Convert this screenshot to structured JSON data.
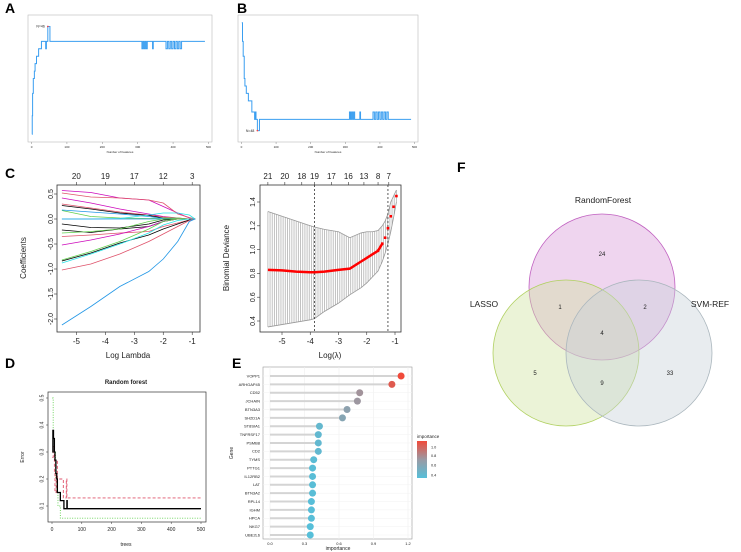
{
  "panel_labels": [
    "A",
    "B",
    "C",
    "D",
    "E",
    "F"
  ],
  "chart_data": [
    {
      "id": "A",
      "type": "line",
      "xlabel": "Number of Features",
      "xlim": [
        0,
        500
      ],
      "ylim": [
        0.7,
        0.86
      ],
      "xticks": [
        "0",
        "100",
        "200",
        "300",
        "400",
        "500"
      ],
      "color": "#3a9ef0",
      "annotation": "N=46",
      "annotation_color": "#ff4040",
      "points": [
        [
          1,
          0.705
        ],
        [
          2,
          0.73
        ],
        [
          3,
          0.76
        ],
        [
          5,
          0.78
        ],
        [
          8,
          0.79
        ],
        [
          10,
          0.8
        ],
        [
          14,
          0.81
        ],
        [
          20,
          0.82
        ],
        [
          25,
          0.82
        ],
        [
          28,
          0.83
        ],
        [
          38,
          0.83
        ],
        [
          40,
          0.82
        ],
        [
          42,
          0.83
        ],
        [
          46,
          0.85
        ],
        [
          50,
          0.85
        ],
        [
          52,
          0.83
        ],
        [
          310,
          0.83
        ],
        [
          312,
          0.82
        ],
        [
          315,
          0.83
        ],
        [
          318,
          0.82
        ],
        [
          321,
          0.83
        ],
        [
          324,
          0.82
        ],
        [
          327,
          0.83
        ],
        [
          340,
          0.83
        ],
        [
          342,
          0.82
        ],
        [
          344,
          0.83
        ],
        [
          378,
          0.83
        ],
        [
          380,
          0.82
        ],
        [
          384,
          0.83
        ],
        [
          388,
          0.82
        ],
        [
          392,
          0.83
        ],
        [
          396,
          0.82
        ],
        [
          400,
          0.83
        ],
        [
          404,
          0.82
        ],
        [
          408,
          0.83
        ],
        [
          412,
          0.82
        ],
        [
          416,
          0.83
        ],
        [
          420,
          0.82
        ],
        [
          424,
          0.83
        ],
        [
          490,
          0.83
        ]
      ]
    },
    {
      "id": "B",
      "type": "line",
      "xlabel": "Number of Features",
      "xlim": [
        0,
        500
      ],
      "ylim": [
        0.14,
        0.3
      ],
      "xticks": [
        "0",
        "100",
        "200",
        "300",
        "400",
        "500"
      ],
      "color": "#3a9ef0",
      "annotation": "N=48",
      "annotation_color": "#ff4040",
      "points": [
        [
          1,
          0.295
        ],
        [
          3,
          0.27
        ],
        [
          5,
          0.25
        ],
        [
          8,
          0.22
        ],
        [
          10,
          0.21
        ],
        [
          14,
          0.2
        ],
        [
          20,
          0.19
        ],
        [
          25,
          0.19
        ],
        [
          30,
          0.175
        ],
        [
          38,
          0.165
        ],
        [
          40,
          0.175
        ],
        [
          42,
          0.165
        ],
        [
          46,
          0.15
        ],
        [
          50,
          0.15
        ],
        [
          52,
          0.165
        ],
        [
          310,
          0.165
        ],
        [
          312,
          0.175
        ],
        [
          315,
          0.165
        ],
        [
          318,
          0.175
        ],
        [
          321,
          0.165
        ],
        [
          324,
          0.175
        ],
        [
          327,
          0.165
        ],
        [
          340,
          0.165
        ],
        [
          342,
          0.175
        ],
        [
          344,
          0.165
        ],
        [
          378,
          0.165
        ],
        [
          380,
          0.175
        ],
        [
          384,
          0.165
        ],
        [
          388,
          0.175
        ],
        [
          392,
          0.165
        ],
        [
          396,
          0.175
        ],
        [
          400,
          0.165
        ],
        [
          404,
          0.175
        ],
        [
          408,
          0.165
        ],
        [
          412,
          0.175
        ],
        [
          416,
          0.165
        ],
        [
          420,
          0.175
        ],
        [
          424,
          0.165
        ],
        [
          490,
          0.165
        ]
      ]
    },
    {
      "id": "C-left",
      "type": "line",
      "xlabel": "Log Lambda",
      "ylabel": "Coefficients",
      "xlim": [
        -5.6,
        -0.8
      ],
      "ylim": [
        -2.2,
        0.6
      ],
      "xticks": [
        "-5",
        "-4",
        "-3",
        "-2",
        "-1"
      ],
      "yticks": [
        "-2.0",
        "-1.5",
        "-1.0",
        "-0.5",
        "0.0",
        "0.5"
      ],
      "top_ticks": [
        "20",
        "19",
        "17",
        "12",
        "3"
      ],
      "x": [
        -5.5,
        -4.5,
        -3.5,
        -2.5,
        -2.0,
        -1.5,
        -1.1,
        -0.9
      ],
      "series": [
        {
          "color": "#CD0BBC",
          "values": [
            0.57,
            0.53,
            0.42,
            0.38,
            0.25,
            0.12,
            0.02,
            0
          ]
        },
        {
          "color": "#DF536B",
          "values": [
            0.52,
            0.44,
            0.42,
            0.38,
            0.32,
            0.1,
            0.03,
            0
          ]
        },
        {
          "color": "#CD0BBC",
          "values": [
            0.42,
            0.32,
            0.2,
            0.1,
            0.05,
            0.02,
            0,
            0
          ]
        },
        {
          "color": "#DF536B",
          "values": [
            0.3,
            0.22,
            0.14,
            0.08,
            0.04,
            0.02,
            0,
            0
          ]
        },
        {
          "color": "#000000",
          "values": [
            0.27,
            0.2,
            0.12,
            0.07,
            0.02,
            0,
            0,
            0
          ]
        },
        {
          "color": "#61D04F",
          "values": [
            0.17,
            0.05,
            0.02,
            0.01,
            0.02,
            0.02,
            0,
            0
          ]
        },
        {
          "color": "#2297E6",
          "values": [
            0.18,
            0.14,
            0.1,
            0.05,
            0.01,
            0,
            0,
            0
          ]
        },
        {
          "color": "#28E2E5",
          "values": [
            0.0,
            0.0,
            0.01,
            0.08,
            0.12,
            0.12,
            0.08,
            0
          ]
        },
        {
          "color": "#2297E6",
          "values": [
            0.0,
            0.0,
            0.0,
            0.0,
            0.0,
            0.0,
            0.0,
            0
          ]
        },
        {
          "color": "#000000",
          "values": [
            -0.1,
            -0.17,
            -0.18,
            -0.1,
            -0.02,
            0,
            0,
            0
          ]
        },
        {
          "color": "#000000",
          "values": [
            -0.22,
            -0.27,
            -0.2,
            -0.15,
            -0.05,
            0,
            0,
            0
          ]
        },
        {
          "color": "#61D04F",
          "values": [
            -0.28,
            -0.25,
            -0.2,
            -0.05,
            0,
            0,
            0,
            0
          ]
        },
        {
          "color": "#DF536B",
          "values": [
            -0.35,
            -0.32,
            -0.28,
            -0.25,
            -0.15,
            -0.08,
            -0.02,
            0
          ]
        },
        {
          "color": "#CD0BBC",
          "values": [
            -0.52,
            -0.42,
            -0.3,
            -0.15,
            -0.05,
            0,
            0,
            0
          ]
        },
        {
          "color": "#61D04F",
          "values": [
            -0.82,
            -0.65,
            -0.45,
            -0.2,
            -0.05,
            0,
            0,
            0
          ]
        },
        {
          "color": "#000000",
          "values": [
            -0.84,
            -0.68,
            -0.48,
            -0.32,
            -0.2,
            -0.1,
            -0.02,
            0
          ]
        },
        {
          "color": "#28E2E5",
          "values": [
            -0.88,
            -0.7,
            -0.5,
            -0.28,
            -0.12,
            -0.03,
            0,
            0
          ]
        },
        {
          "color": "#DF536B",
          "values": [
            -1.02,
            -0.9,
            -0.7,
            -0.45,
            -0.3,
            -0.15,
            -0.03,
            0
          ]
        },
        {
          "color": "#2297E6",
          "values": [
            -2.12,
            -1.75,
            -1.35,
            -1.05,
            -0.8,
            -0.45,
            -0.05,
            0
          ]
        }
      ]
    },
    {
      "id": "C-right",
      "type": "line",
      "xlabel": "Log(λ)",
      "ylabel": "Binomial Deviance",
      "xlim": [
        -5.6,
        -0.85
      ],
      "ylim": [
        0.33,
        1.52
      ],
      "xticks": [
        "-5",
        "-4",
        "-3",
        "-2",
        "-1"
      ],
      "yticks": [
        "0.4",
        "0.6",
        "0.8",
        "1.0",
        "1.2",
        "1.4"
      ],
      "top_ticks": [
        {
          "x": -5.5,
          "label": "21"
        },
        {
          "x": -4.9,
          "label": "20"
        },
        {
          "x": -4.3,
          "label": "18"
        },
        {
          "x": -3.85,
          "label": "19"
        },
        {
          "x": -3.25,
          "label": "17"
        },
        {
          "x": -2.65,
          "label": "16"
        },
        {
          "x": -2.1,
          "label": "13"
        },
        {
          "x": -1.6,
          "label": "8"
        },
        {
          "x": -1.22,
          "label": "7"
        }
      ],
      "vlines": [
        -3.85,
        -1.25
      ],
      "x": [
        -5.5,
        -5.0,
        -4.5,
        -4.0,
        -3.85,
        -3.5,
        -3.0,
        -2.6,
        -2.2,
        -2.0,
        -1.8,
        -1.6,
        -1.45,
        -1.35,
        -1.25,
        -1.15,
        -1.05,
        -0.95
      ],
      "mean": [
        0.83,
        0.825,
        0.815,
        0.81,
        0.81,
        0.815,
        0.83,
        0.84,
        0.9,
        0.93,
        0.96,
        0.99,
        1.05,
        1.1,
        1.18,
        1.28,
        1.36,
        1.45
      ],
      "upper": [
        1.32,
        1.28,
        1.24,
        1.2,
        1.19,
        1.17,
        1.15,
        1.1,
        1.14,
        1.15,
        1.15,
        1.16,
        1.2,
        1.24,
        1.3,
        1.4,
        1.45,
        1.5
      ],
      "lower": [
        0.35,
        0.37,
        0.39,
        0.41,
        0.42,
        0.48,
        0.55,
        0.62,
        0.68,
        0.72,
        0.77,
        0.82,
        0.9,
        0.97,
        1.05,
        1.15,
        1.27,
        1.4
      ],
      "mean_color": "#ff0000"
    },
    {
      "id": "D",
      "type": "line",
      "title": "Random forest",
      "xlabel": "trees",
      "ylabel": "Error",
      "xlim": [
        -10,
        510
      ],
      "ylim": [
        0.04,
        0.52
      ],
      "xticks": [
        "0",
        "100",
        "200",
        "300",
        "400",
        "500"
      ],
      "yticks": [
        "0.1",
        "0.2",
        "0.3",
        "0.4",
        "0.5"
      ],
      "series": [
        {
          "color": "#000000",
          "dash": "solid",
          "points": [
            [
              1,
              0.3
            ],
            [
              3,
              0.38
            ],
            [
              5,
              0.35
            ],
            [
              8,
              0.3
            ],
            [
              10,
              0.27
            ],
            [
              13,
              0.22
            ],
            [
              16,
              0.2
            ],
            [
              18,
              0.15
            ],
            [
              25,
              0.15
            ],
            [
              28,
              0.12
            ],
            [
              38,
              0.12
            ],
            [
              40,
              0.09
            ],
            [
              48,
              0.09
            ],
            [
              50,
              0.12
            ],
            [
              51,
              0.09
            ],
            [
              500,
              0.09
            ]
          ]
        },
        {
          "color": "#DF536B",
          "dash": "dashed",
          "points": [
            [
              1,
              0.28
            ],
            [
              4,
              0.32
            ],
            [
              8,
              0.22
            ],
            [
              10,
              0.15
            ],
            [
              14,
              0.27
            ],
            [
              18,
              0.2
            ],
            [
              25,
              0.2
            ],
            [
              35,
              0.2
            ],
            [
              38,
              0.13
            ],
            [
              45,
              0.13
            ],
            [
              48,
              0.2
            ],
            [
              50,
              0.13
            ],
            [
              500,
              0.13
            ]
          ]
        },
        {
          "color": "#61D04F",
          "dash": "dotted",
          "points": [
            [
              1,
              0.5
            ],
            [
              4,
              0.35
            ],
            [
              8,
              0.3
            ],
            [
              12,
              0.2
            ],
            [
              16,
              0.15
            ],
            [
              20,
              0.1
            ],
            [
              26,
              0.1
            ],
            [
              28,
              0.055
            ],
            [
              500,
              0.055
            ]
          ]
        }
      ]
    },
    {
      "id": "E",
      "type": "scatter",
      "xlabel": "importance",
      "ylabel": "Gene",
      "xlim": [
        -0.04,
        1.22
      ],
      "xticks": [
        "0.0",
        "0.3",
        "0.6",
        "0.9",
        "1.2"
      ],
      "genes": [
        "VOPP1",
        "ARHGAP45",
        "CD52",
        "JCHAIN",
        "BTN3A3",
        "SH2D1A",
        "ST8SIA1",
        "TNFRSF17",
        "PSMB8",
        "CD2",
        "TYMS",
        "PTTG1",
        "IL12RB2",
        "LAT",
        "BTN3A2",
        "RPL14",
        "IGHM",
        "HPCA",
        "NKG7",
        "UBE2L6"
      ],
      "values": [
        1.14,
        1.06,
        0.78,
        0.76,
        0.67,
        0.63,
        0.43,
        0.42,
        0.42,
        0.42,
        0.38,
        0.37,
        0.37,
        0.37,
        0.37,
        0.36,
        0.36,
        0.36,
        0.35,
        0.35
      ],
      "legend": {
        "title": "importance",
        "ticks": [
          "1.0",
          "0.8",
          "0.6",
          "0.4"
        ],
        "low_color": "#56bfd9",
        "high_color": "#f04a3a"
      }
    },
    {
      "id": "F",
      "type": "venn",
      "sets": [
        {
          "name": "RandomForest",
          "fill": "#d89ad8",
          "stroke": "#c060c0"
        },
        {
          "name": "LASSO",
          "fill": "#cfe3a0",
          "stroke": "#b0d060"
        },
        {
          "name": "SVM-REF",
          "fill": "#c8d2d8",
          "stroke": "#aab6bd"
        }
      ],
      "regions": {
        "RandomForest_only": "24",
        "LASSO_only": "5",
        "SVM-REF_only": "33",
        "RandomForest_LASSO": "1",
        "RandomForest_SVM-REF": "2",
        "LASSO_SVM-REF": "9",
        "all": "4"
      }
    }
  ]
}
